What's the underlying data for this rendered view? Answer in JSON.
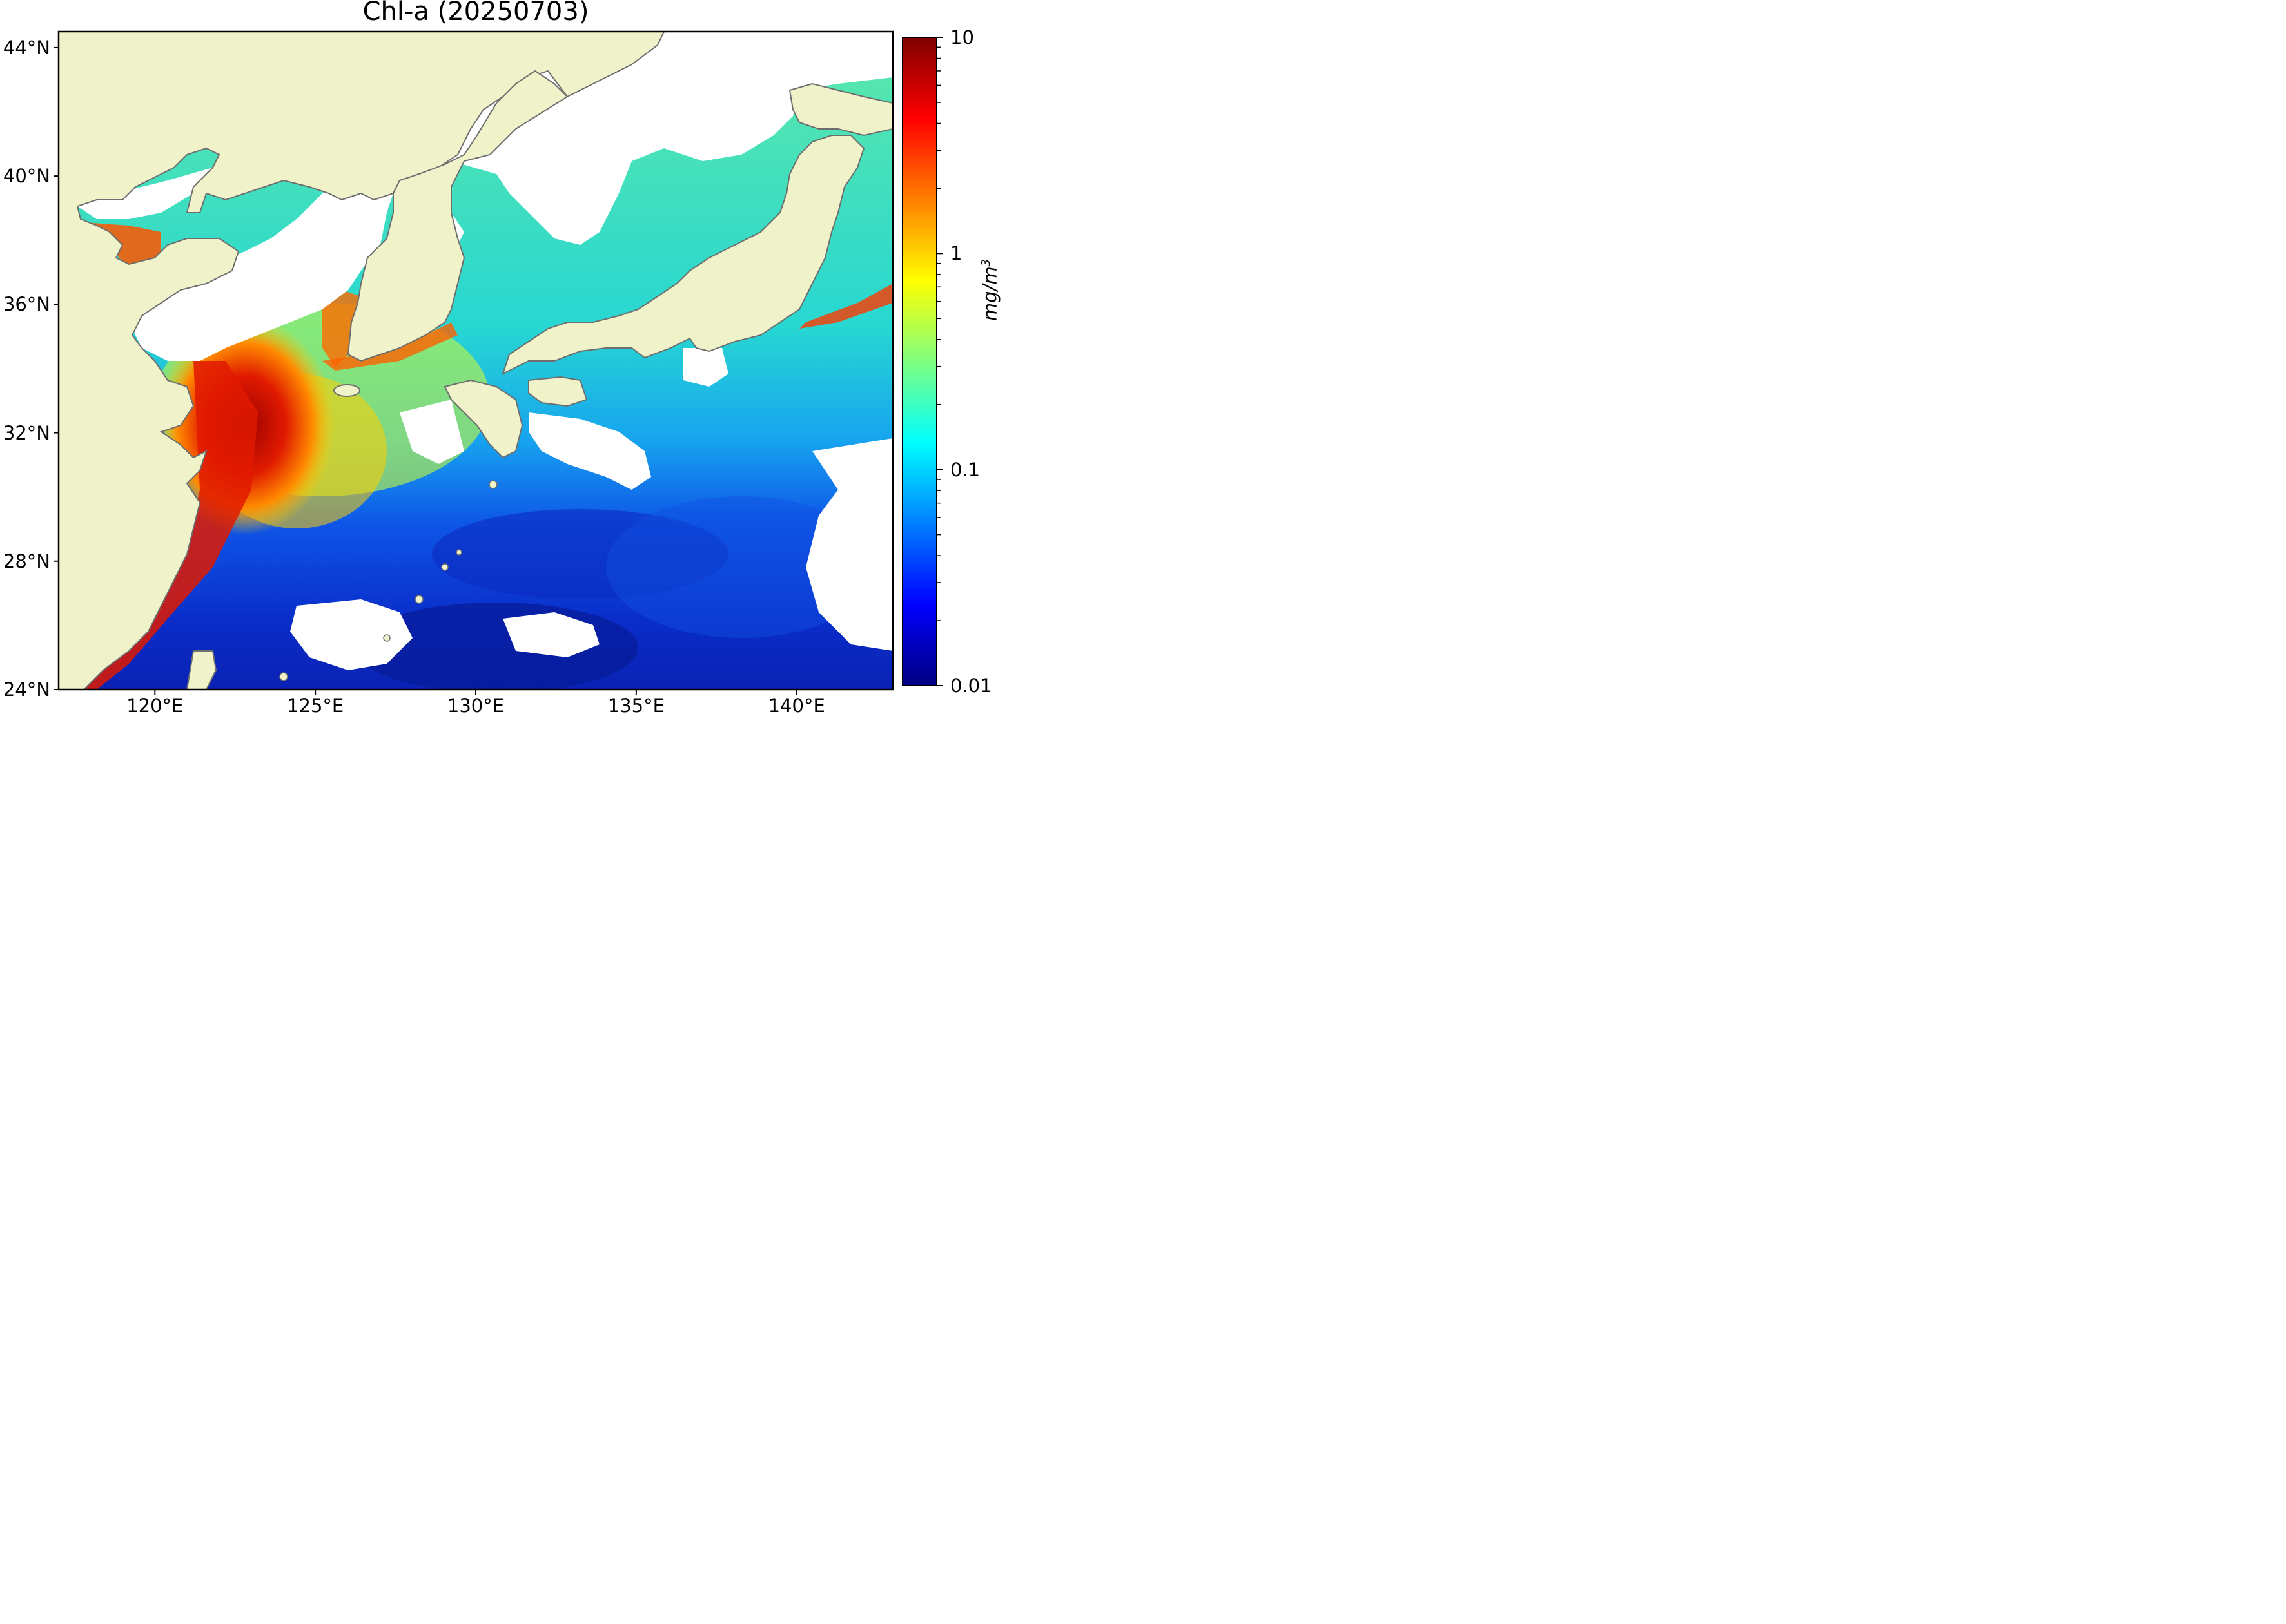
{
  "title": "Chl-a (20250703)",
  "map": {
    "region": "East China Sea, Yellow Sea, Korean Peninsula, Sea of Japan, Japan",
    "lat_labels": [
      "44°N",
      "40°N",
      "36°N",
      "32°N",
      "28°N",
      "24°N"
    ],
    "lat_values": [
      44,
      40,
      36,
      32,
      28,
      24
    ],
    "lon_labels": [
      "120°E",
      "125°E",
      "130°E",
      "135°E",
      "140°E"
    ],
    "lon_values": [
      120,
      125,
      130,
      135,
      140
    ],
    "lon_range": [
      117,
      143
    ],
    "lat_range": [
      24,
      44.5
    ],
    "land_color": "#f0f3c9",
    "coast_color": "#6e6e6e",
    "cloud_color": "#ffffff"
  },
  "colorbar": {
    "unit": "mg/m",
    "unit_superscript": "3",
    "scale": "log",
    "range": [
      0.01,
      10
    ],
    "tick_labels": [
      "10",
      "1",
      "0.1",
      "0.01"
    ],
    "tick_values": [
      10,
      1,
      0.1,
      0.01
    ],
    "colormap": [
      "#00007f",
      "#0000ff",
      "#007fff",
      "#00ffff",
      "#7fff7f",
      "#ffff00",
      "#ff7f00",
      "#ff0000",
      "#7f0000"
    ]
  }
}
